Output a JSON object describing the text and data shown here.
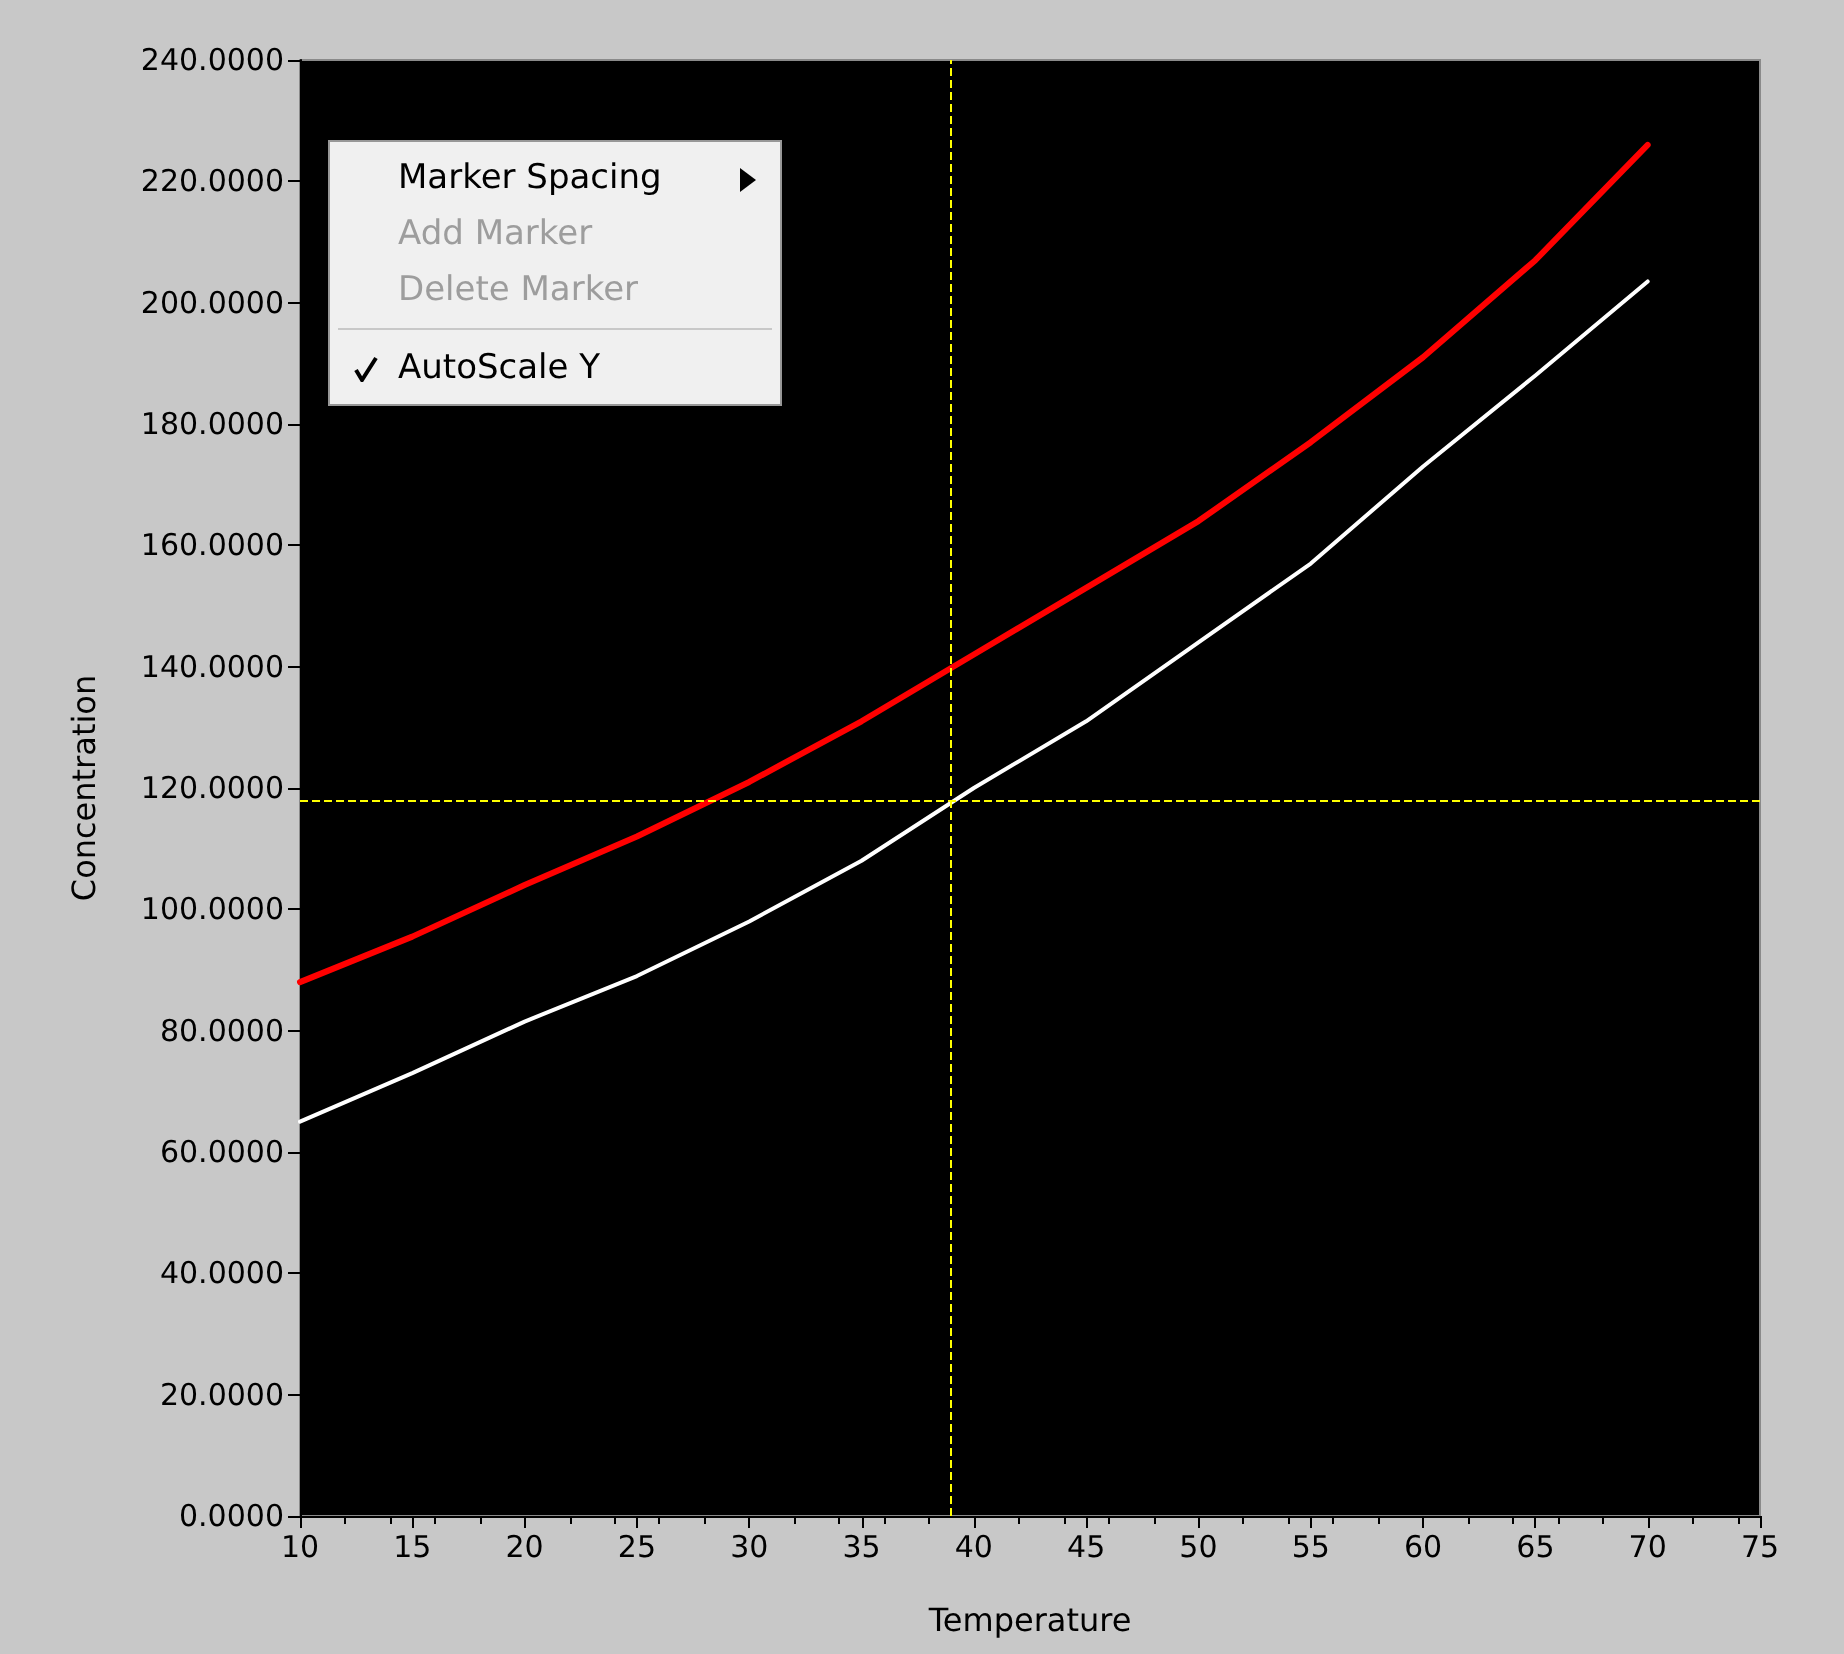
{
  "chart_data": {
    "type": "line",
    "xlabel": "Temperature",
    "ylabel": "Concentration",
    "x": [
      10,
      15,
      20,
      25,
      30,
      35,
      40,
      45,
      50,
      55,
      60,
      65,
      70
    ],
    "series": [
      {
        "color": "#ff0000",
        "values": [
          88,
          95.5,
          104,
          112,
          121,
          131,
          142,
          153,
          164,
          177,
          191,
          207,
          226
        ]
      },
      {
        "color": "#ffffff",
        "values": [
          65,
          73,
          81.5,
          89,
          98,
          108,
          120,
          131,
          144,
          157,
          173,
          188,
          203.5
        ]
      }
    ],
    "xlim": [
      10,
      75
    ],
    "xticks": [
      10,
      15,
      20,
      25,
      30,
      35,
      40,
      45,
      50,
      55,
      60,
      65,
      70,
      75
    ],
    "ylim": [
      0,
      240
    ],
    "yticks": [
      {
        "value": 0,
        "label": "0.0000"
      },
      {
        "value": 20,
        "label": "20.0000"
      },
      {
        "value": 40,
        "label": "40.0000"
      },
      {
        "value": 60,
        "label": "60.0000"
      },
      {
        "value": 80,
        "label": "80.0000"
      },
      {
        "value": 100,
        "label": "100.0000"
      },
      {
        "value": 120,
        "label": "120.0000"
      },
      {
        "value": 140,
        "label": "140.0000"
      },
      {
        "value": 160,
        "label": "160.0000"
      },
      {
        "value": 180,
        "label": "180.0000"
      },
      {
        "value": 200,
        "label": "200.0000"
      },
      {
        "value": 220,
        "label": "220.0000"
      },
      {
        "value": 240,
        "label": "240.0000"
      }
    ],
    "ref_lines": [
      {
        "axis": "x",
        "value": 39,
        "color": "#ffff00",
        "line_style": "dashed"
      },
      {
        "axis": "y",
        "value": 118,
        "color": "#ffff00",
        "line_style": "dashed"
      }
    ],
    "line_style": "solid",
    "annotations": [
      "Marker Spacing",
      "Add Marker",
      "Delete Marker",
      "AutoScale Y"
    ]
  }
}
